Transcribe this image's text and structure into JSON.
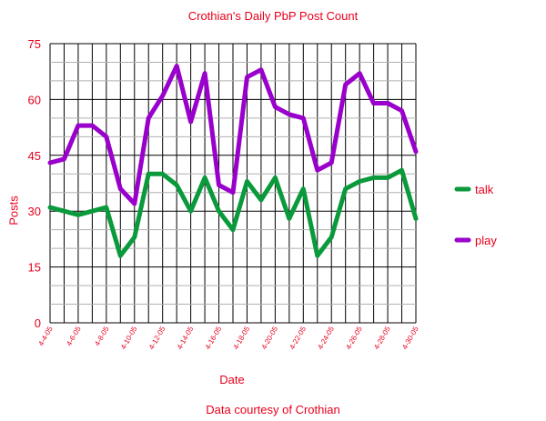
{
  "chart_data": {
    "type": "line",
    "title": "Crothian's Daily PbP Post Count",
    "xlabel": "Date",
    "ylabel": "Posts",
    "credit": "Data courtesy of Crothian",
    "ylim": [
      0,
      75
    ],
    "yticks": [
      0,
      15,
      30,
      45,
      60,
      75
    ],
    "grid": true,
    "legend_position": "right",
    "colors": {
      "text": "#e8001c",
      "grid": "#000000",
      "minor_grid": "#b0b0b0"
    },
    "x": [
      "4-4-05",
      "4-5-05",
      "4-6-05",
      "4-7-05",
      "4-8-05",
      "4-9-05",
      "4-10-05",
      "4-11-05",
      "4-12-05",
      "4-13-05",
      "4-14-05",
      "4-15-05",
      "4-16-05",
      "4-17-05",
      "4-18-05",
      "4-19-05",
      "4-20-05",
      "4-21-05",
      "4-22-05",
      "4-23-05",
      "4-24-05",
      "4-25-05",
      "4-26-05",
      "4-27-05",
      "4-28-05",
      "4-29-05",
      "4-30-05"
    ],
    "xtick_labels": [
      "4-4-05",
      "4-6-05",
      "4-8-05",
      "4-10-05",
      "4-12-05",
      "4-14-05",
      "4-16-05",
      "4-18-05",
      "4-20-05",
      "4-22-05",
      "4-24-05",
      "4-26-05",
      "4-28-05",
      "4-30-05"
    ],
    "series": [
      {
        "name": "talk",
        "color": "#0a9a3c",
        "values": [
          31,
          30,
          29,
          30,
          31,
          18,
          23,
          40,
          40,
          37,
          30,
          39,
          30,
          25,
          38,
          33,
          39,
          28,
          36,
          18,
          23,
          36,
          38,
          39,
          39,
          41,
          28
        ]
      },
      {
        "name": "play",
        "color": "#9a00cc",
        "values": [
          43,
          44,
          53,
          53,
          50,
          36,
          32,
          55,
          61,
          69,
          54,
          67,
          37,
          35,
          66,
          68,
          58,
          56,
          55,
          41,
          43,
          64,
          67,
          59,
          59,
          57,
          46
        ]
      }
    ]
  }
}
